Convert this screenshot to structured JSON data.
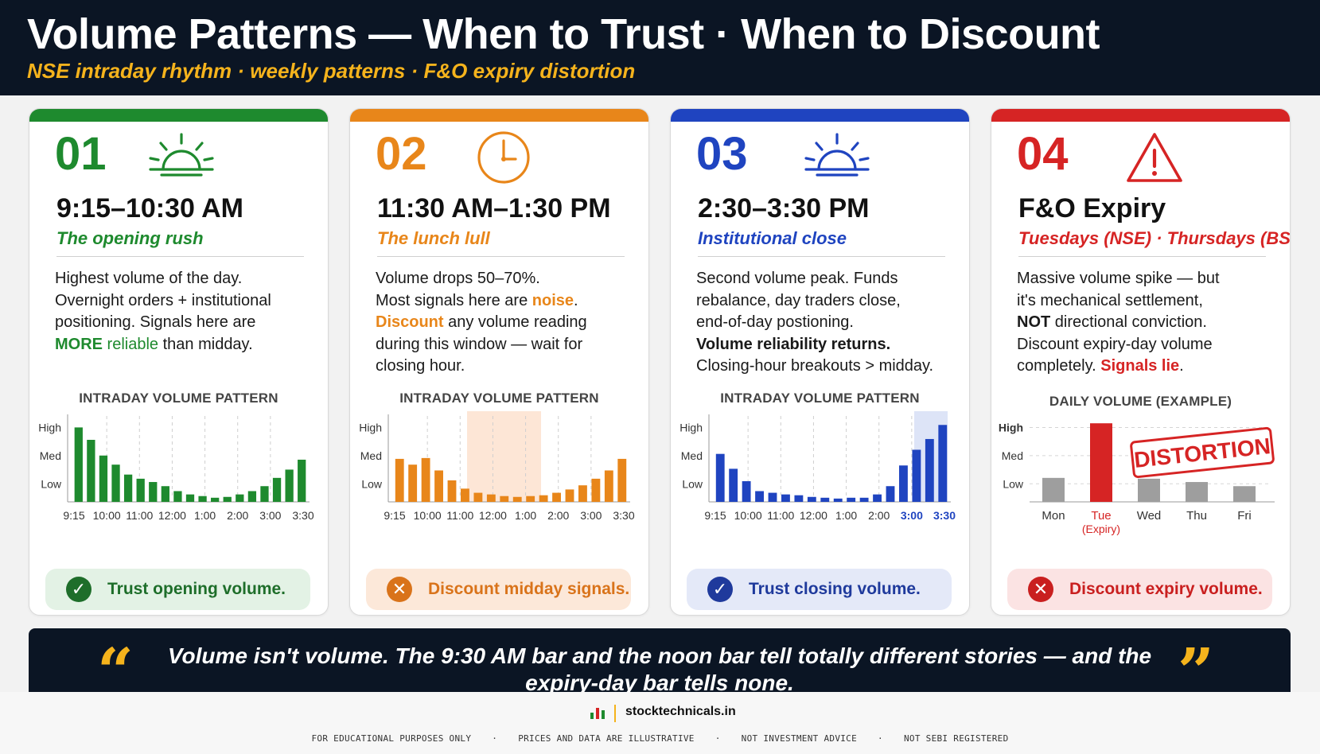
{
  "header": {
    "title": "Volume Patterns — When to Trust · When to Discount",
    "subtitle": "NSE intraday rhythm · weekly patterns · F&O expiry distortion"
  },
  "cards": [
    {
      "number": "01",
      "icon": "sunrise-icon",
      "accent": "#1e8a2e",
      "time": "9:15–10:30 AM",
      "tagline": "The opening rush",
      "body": [
        [
          {
            "t": "Highest volume of the day."
          }
        ],
        [
          {
            "t": "Overnight orders + institutional"
          }
        ],
        [
          {
            "t": "positioning. Signals here are"
          }
        ],
        [
          {
            "t": "MORE",
            "b": true,
            "c": "#1e8a2e"
          },
          {
            "t": " reliable",
            "c": "#1e8a2e"
          },
          {
            "t": " than midday."
          }
        ]
      ],
      "chart_title": "INTRADAY VOLUME PATTERN",
      "pill_text": "Trust opening volume.",
      "pill_icon": "check-circle-icon",
      "pill_bg": "#e3f2e5",
      "pill_color": "#1e6e2a"
    },
    {
      "number": "02",
      "icon": "clock-icon",
      "accent": "#e8861a",
      "time": "11:30 AM–1:30 PM",
      "tagline": "The lunch lull",
      "body": [
        [
          {
            "t": "Volume drops 50–70%."
          }
        ],
        [
          {
            "t": "Most signals here are "
          },
          {
            "t": "noise",
            "b": true,
            "c": "#e8861a"
          },
          {
            "t": "."
          }
        ],
        [
          {
            "t": "Discount",
            "b": true,
            "c": "#e8861a"
          },
          {
            "t": " any volume reading"
          }
        ],
        [
          {
            "t": "during this window — wait for"
          }
        ],
        [
          {
            "t": "closing hour."
          }
        ]
      ],
      "chart_title": "INTRADAY VOLUME PATTERN",
      "pill_text": "Discount midday signals.",
      "pill_icon": "x-circle-icon",
      "pill_bg": "#fce8d9",
      "pill_color": "#d9731a"
    },
    {
      "number": "03",
      "icon": "sunset-icon",
      "accent": "#1f44c0",
      "time": "2:30–3:30 PM",
      "tagline": "Institutional close",
      "body": [
        [
          {
            "t": "Second volume peak. Funds"
          }
        ],
        [
          {
            "t": "rebalance, day traders close,"
          }
        ],
        [
          {
            "t": "end-of-day postioning."
          }
        ],
        [
          {
            "t": "Volume reliability returns.",
            "b": true
          }
        ],
        [
          {
            "t": "Closing-hour breakouts > midday."
          }
        ]
      ],
      "chart_title": "INTRADAY VOLUME PATTERN",
      "pill_text": "Trust closing volume.",
      "pill_icon": "check-circle-icon",
      "pill_bg": "#e4e9f8",
      "pill_color": "#1f3a9c"
    },
    {
      "number": "04",
      "icon": "warning-icon",
      "accent": "#d62424",
      "time": "F&O Expiry",
      "tagline": "Tuesdays (NSE) · Thursdays (BSE)",
      "body": [
        [
          {
            "t": "Massive volume spike — but"
          }
        ],
        [
          {
            "t": "it's mechanical settlement,"
          }
        ],
        [
          {
            "t": "NOT",
            "b": true
          },
          {
            "t": " directional conviction."
          }
        ],
        [
          {
            "t": "Discount expiry-day volume"
          }
        ],
        [
          {
            "t": "completely. "
          },
          {
            "t": "Signals lie",
            "b": true,
            "c": "#d62424"
          },
          {
            "t": "."
          }
        ]
      ],
      "chart_title": "DAILY VOLUME (EXAMPLE)",
      "pill_text": "Discount expiry volume.",
      "pill_icon": "x-circle-icon",
      "pill_bg": "#fbe3e3",
      "pill_color": "#c91f1f"
    }
  ],
  "chart_data": [
    {
      "type": "bar",
      "title": "INTRADAY VOLUME PATTERN",
      "y_ticks": [
        "High",
        "Med",
        "Low"
      ],
      "x_ticks": [
        "9:15",
        "10:00",
        "11:00",
        "12:00",
        "1:00",
        "2:00",
        "3:00",
        "3:30"
      ],
      "values": [
        0.9,
        0.75,
        0.56,
        0.45,
        0.33,
        0.28,
        0.24,
        0.19,
        0.13,
        0.09,
        0.07,
        0.05,
        0.06,
        0.09,
        0.13,
        0.19,
        0.29,
        0.39,
        0.51
      ],
      "color": "#1e8a2e",
      "highlight_band": null
    },
    {
      "type": "bar",
      "title": "INTRADAY VOLUME PATTERN",
      "y_ticks": [
        "High",
        "Med",
        "Low"
      ],
      "x_ticks": [
        "9:15",
        "10:00",
        "11:00",
        "12:00",
        "1:00",
        "2:00",
        "3:00",
        "3:30"
      ],
      "values": [
        0.52,
        0.45,
        0.53,
        0.38,
        0.26,
        0.16,
        0.11,
        0.09,
        0.07,
        0.06,
        0.07,
        0.08,
        0.11,
        0.15,
        0.2,
        0.28,
        0.38,
        0.52
      ],
      "color": "#e8861a",
      "highlight_band": [
        0.33,
        0.64
      ],
      "band_color": "#fde6d6"
    },
    {
      "type": "bar",
      "title": "INTRADAY VOLUME PATTERN",
      "y_ticks": [
        "High",
        "Med",
        "Low"
      ],
      "x_ticks": [
        "9:15",
        "10:00",
        "11:00",
        "12:00",
        "1:00",
        "2:00",
        "3:00",
        "3:30"
      ],
      "values": [
        0.58,
        0.4,
        0.25,
        0.13,
        0.11,
        0.09,
        0.08,
        0.06,
        0.05,
        0.04,
        0.05,
        0.05,
        0.09,
        0.19,
        0.44,
        0.63,
        0.76,
        0.93
      ],
      "color": "#1f44c0",
      "highlight_band": [
        0.86,
        1.0
      ],
      "band_color": "#dde4f7",
      "highlight_ticks": [
        "3:00",
        "3:30"
      ]
    },
    {
      "type": "bar",
      "title": "DAILY VOLUME (EXAMPLE)",
      "y_ticks": [
        "High",
        "Med",
        "Low"
      ],
      "categories": [
        "Mon",
        "Tue",
        "Wed",
        "Thu",
        "Fri"
      ],
      "category_notes": [
        "",
        "(Expiry)",
        "",
        "",
        ""
      ],
      "values": [
        0.29,
        0.95,
        0.28,
        0.24,
        0.19
      ],
      "colors": [
        "#9e9e9e",
        "#d62424",
        "#9e9e9e",
        "#9e9e9e",
        "#9e9e9e"
      ],
      "stamp": "DISTORTION"
    }
  ],
  "quote": {
    "text": "Volume isn't volume. The 9:30 AM bar and the noon bar tell totally different stories — and the expiry-day bar tells none.",
    "open_mark": "“",
    "close_mark": "”"
  },
  "footer": {
    "brand": "stocktechnicals.in",
    "disclaimers": [
      "FOR EDUCATIONAL PURPOSES ONLY",
      "PRICES AND DATA ARE ILLUSTRATIVE",
      "NOT INVESTMENT ADVICE",
      "NOT SEBI REGISTERED"
    ],
    "separator": "·"
  }
}
